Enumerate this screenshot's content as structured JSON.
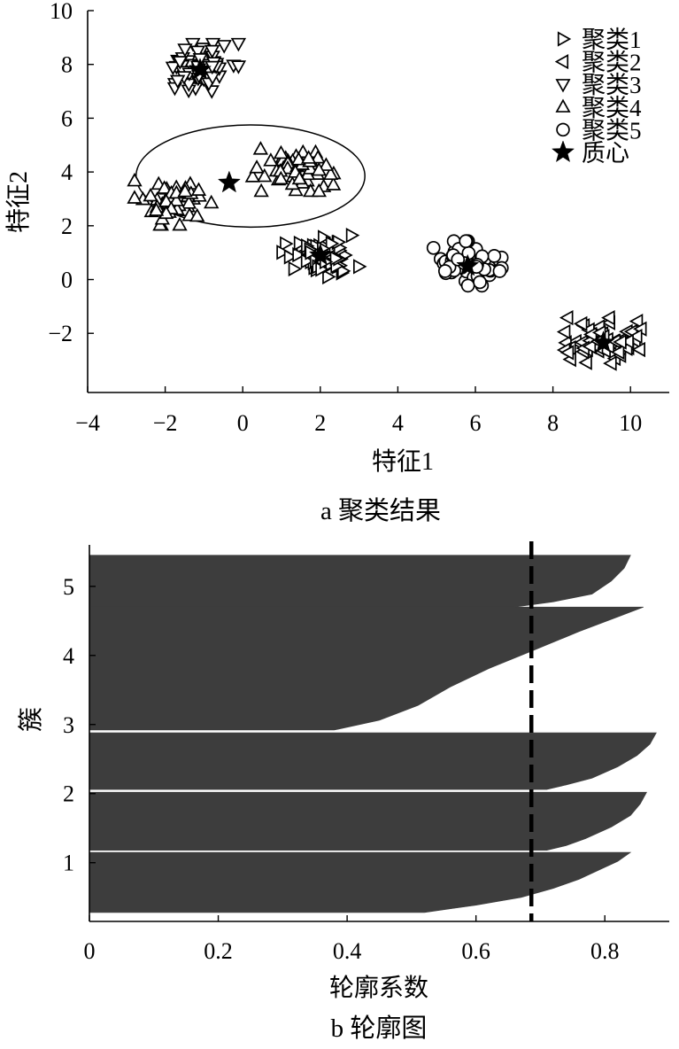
{
  "chart_data": [
    {
      "type": "scatter",
      "xlabel": "特征1",
      "ylabel": "特征2",
      "caption": "a 聚类结果",
      "xlim": [
        -4,
        11
      ],
      "ylim": [
        -4.2,
        10
      ],
      "xticks": [
        -4,
        -2,
        0,
        2,
        4,
        6,
        8,
        10
      ],
      "yticks": [
        -2,
        0,
        2,
        4,
        6,
        8,
        10
      ],
      "xtick_labels": [
        "−4",
        "−2",
        "0",
        "2",
        "4",
        "6",
        "8",
        "10"
      ],
      "ytick_labels": [
        "−2",
        "0",
        "2",
        "4",
        "6",
        "8",
        "10"
      ],
      "legend_position": "top-right",
      "legend": [
        {
          "label": "聚类1",
          "marker": "triangle-right"
        },
        {
          "label": "聚类2",
          "marker": "triangle-left"
        },
        {
          "label": "聚类3",
          "marker": "triangle-down"
        },
        {
          "label": "聚类4",
          "marker": "triangle-up"
        },
        {
          "label": "聚类5",
          "marker": "circle"
        },
        {
          "label": "质心",
          "marker": "star"
        }
      ],
      "series": [
        {
          "name": "聚类1",
          "marker": "triangle-right",
          "center": [
            2.0,
            0.8
          ],
          "spread": [
            0.9,
            0.8
          ],
          "count": 60
        },
        {
          "name": "聚类2",
          "marker": "triangle-left",
          "center": [
            9.3,
            -2.3
          ],
          "spread": [
            0.9,
            0.8
          ],
          "count": 60
        },
        {
          "name": "聚类3",
          "marker": "triangle-down",
          "center": [
            -1.1,
            7.9
          ],
          "spread": [
            0.9,
            0.8
          ],
          "count": 55
        },
        {
          "name": "聚类4",
          "marker": "triangle-up",
          "clusters": [
            {
              "center": [
                -1.8,
                2.9
              ],
              "spread": [
                0.9,
                0.8
              ],
              "count": 50
            },
            {
              "center": [
                1.3,
                4.1
              ],
              "spread": [
                0.95,
                0.75
              ],
              "count": 55
            }
          ]
        },
        {
          "name": "聚类5",
          "marker": "circle",
          "center": [
            5.8,
            0.6
          ],
          "spread": [
            0.8,
            0.75
          ],
          "count": 55
        }
      ],
      "centroids": [
        [
          -1.1,
          7.8
        ],
        [
          -0.35,
          3.6
        ],
        [
          2.0,
          0.9
        ],
        [
          5.8,
          0.5
        ],
        [
          9.3,
          -2.35
        ]
      ],
      "annotation_ellipse": {
        "center": [
          0.2,
          3.85
        ],
        "rx": 2.95,
        "ry": 1.9
      }
    },
    {
      "type": "bar",
      "orientation": "horizontal",
      "xlabel": "轮廓系数",
      "ylabel": "簇",
      "caption": "b 轮廓图",
      "xlim": [
        0,
        0.9
      ],
      "ylim": [
        0.15,
        5.6
      ],
      "xticks": [
        0,
        0.2,
        0.4,
        0.6,
        0.8
      ],
      "yticks": [
        1,
        2,
        3,
        4,
        5
      ],
      "xtick_labels": [
        "0",
        "0.2",
        "0.4",
        "0.6",
        "0.8"
      ],
      "ytick_labels": [
        "1",
        "2",
        "3",
        "4",
        "5"
      ],
      "bar_color": "#3d3d3d",
      "mean_line_x": 0.686,
      "clusters": [
        {
          "name": "1",
          "y_range": [
            0.28,
            1.15
          ],
          "profile": [
            [
              0.0,
              0.84
            ],
            [
              0.15,
              0.82
            ],
            [
              0.3,
              0.79
            ],
            [
              0.45,
              0.76
            ],
            [
              0.6,
              0.72
            ],
            [
              0.75,
              0.67
            ],
            [
              0.88,
              0.6
            ],
            [
              1.0,
              0.52
            ]
          ]
        },
        {
          "name": "2",
          "y_range": [
            1.18,
            2.02
          ],
          "profile": [
            [
              0.0,
              0.865
            ],
            [
              0.2,
              0.855
            ],
            [
              0.4,
              0.84
            ],
            [
              0.6,
              0.81
            ],
            [
              0.8,
              0.77
            ],
            [
              0.92,
              0.74
            ],
            [
              1.0,
              0.71
            ]
          ]
        },
        {
          "name": "3",
          "y_range": [
            2.06,
            2.88
          ],
          "profile": [
            [
              0.0,
              0.88
            ],
            [
              0.2,
              0.87
            ],
            [
              0.4,
              0.85
            ],
            [
              0.6,
              0.82
            ],
            [
              0.8,
              0.78
            ],
            [
              0.92,
              0.74
            ],
            [
              1.0,
              0.71
            ]
          ]
        },
        {
          "name": "4",
          "y_range": [
            2.92,
            4.7
          ],
          "profile": [
            [
              0.0,
              0.86
            ],
            [
              0.08,
              0.82
            ],
            [
              0.2,
              0.76
            ],
            [
              0.35,
              0.69
            ],
            [
              0.5,
              0.62
            ],
            [
              0.65,
              0.56
            ],
            [
              0.8,
              0.51
            ],
            [
              0.92,
              0.45
            ],
            [
              1.0,
              0.38
            ]
          ]
        },
        {
          "name": "5",
          "y_range": [
            4.7,
            5.45
          ],
          "profile": [
            [
              0.0,
              0.84
            ],
            [
              0.25,
              0.83
            ],
            [
              0.5,
              0.81
            ],
            [
              0.75,
              0.78
            ],
            [
              0.9,
              0.72
            ],
            [
              1.0,
              0.66
            ]
          ]
        }
      ]
    }
  ]
}
